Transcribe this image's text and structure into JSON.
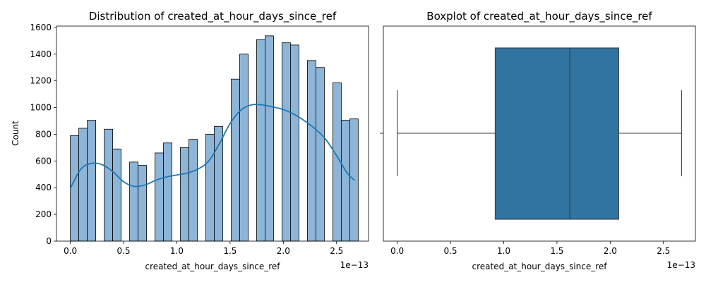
{
  "chart_data": [
    {
      "type": "bar",
      "title": "Distribution of created_at_hour_days_since_ref",
      "xlabel": "created_at_hour_days_since_ref",
      "ylabel": "Count",
      "x_offset_label": "1e−13",
      "xlim": [
        -0.13,
        2.8
      ],
      "ylim": [
        0,
        1610
      ],
      "x_ticks": [
        0.0,
        0.5,
        1.0,
        1.5,
        2.0,
        2.5
      ],
      "x_tick_labels": [
        "0.0",
        "0.5",
        "1.0",
        "1.5",
        "2.0",
        "2.5"
      ],
      "y_ticks": [
        0,
        200,
        400,
        600,
        800,
        1000,
        1200,
        1400,
        1600
      ],
      "y_tick_labels": [
        "0",
        "200",
        "400",
        "600",
        "800",
        "1000",
        "1200",
        "1400",
        "1600"
      ],
      "bin_width": 0.0795,
      "bins_start": [
        0.0,
        0.0795,
        0.159,
        0.318,
        0.3975,
        0.5565,
        0.636,
        0.795,
        0.8745,
        1.0335,
        1.113,
        1.272,
        1.3515,
        1.5105,
        1.59,
        1.749,
        1.8285,
        1.9875,
        2.067,
        2.226,
        2.3055,
        2.4645,
        2.544,
        2.6235
      ],
      "counts": [
        790,
        845,
        905,
        838,
        690,
        592,
        567,
        660,
        735,
        700,
        762,
        800,
        858,
        1213,
        1400,
        1510,
        1537,
        1485,
        1468,
        1352,
        1300,
        1185,
        905,
        915
      ],
      "kde": {
        "x": [
          0.0,
          0.1,
          0.2,
          0.3,
          0.4,
          0.5,
          0.6,
          0.7,
          0.8,
          0.9,
          1.0,
          1.1,
          1.2,
          1.3,
          1.4,
          1.5,
          1.6,
          1.7,
          1.8,
          1.9,
          2.0,
          2.1,
          2.2,
          2.3,
          2.4,
          2.5,
          2.6,
          2.67
        ],
        "y": [
          395,
          540,
          582,
          572,
          520,
          445,
          410,
          420,
          455,
          480,
          495,
          510,
          540,
          600,
          730,
          880,
          980,
          1020,
          1020,
          1005,
          985,
          950,
          900,
          840,
          760,
          640,
          510,
          455
        ]
      },
      "bar_color": "#8db5d8",
      "bar_edge_color": "#000000",
      "kde_color": "#1f77b4",
      "grid": false
    },
    {
      "type": "boxplot",
      "title": "Boxplot of created_at_hour_days_since_ref",
      "xlabel": "created_at_hour_days_since_ref",
      "x_offset_label": "1e−13",
      "xlim": [
        -0.13,
        2.8
      ],
      "x_ticks": [
        0.0,
        0.5,
        1.0,
        1.5,
        2.0,
        2.5
      ],
      "x_tick_labels": [
        "0.0",
        "0.5",
        "1.0",
        "1.5",
        "2.0",
        "2.5"
      ],
      "whisker_low": 0.0,
      "q1": 0.92,
      "median": 1.62,
      "q3": 2.08,
      "whisker_high": 2.67,
      "box_color": "#3274a1",
      "line_color": "#3d3d3d",
      "grid": false
    }
  ]
}
